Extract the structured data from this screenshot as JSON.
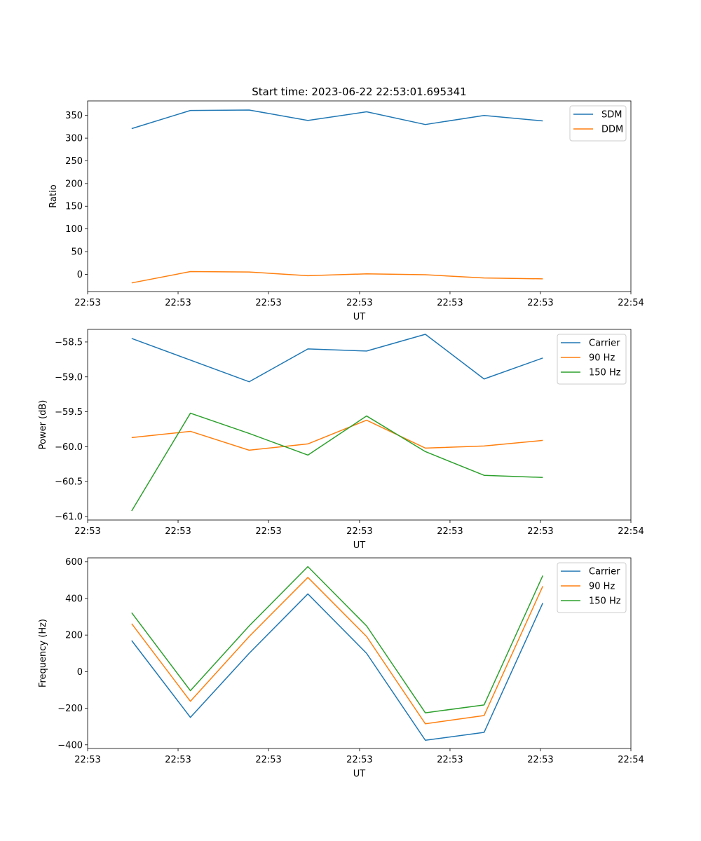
{
  "figure": {
    "title": "Start time: 2023-06-22 22:53:01.695341"
  },
  "chart_data": [
    {
      "type": "line",
      "title": "Start time: 2023-06-22 22:53:01.695341",
      "xlabel": "UT",
      "ylabel": "Ratio",
      "x": [
        0,
        1,
        2,
        3,
        4,
        5,
        6,
        7
      ],
      "xlim": [
        -0.75,
        8.5
      ],
      "x_ticks": [
        -0.75,
        0.79,
        2.33,
        3.88,
        5.42,
        6.96,
        8.5
      ],
      "x_tick_labels": [
        "22:53",
        "22:53",
        "22:53",
        "22:53",
        "22:53",
        "22:53",
        "22:54"
      ],
      "ylim": [
        -38,
        382
      ],
      "y_ticks": [
        0,
        50,
        100,
        150,
        200,
        250,
        300,
        350
      ],
      "y_tick_labels": [
        "0",
        "50",
        "100",
        "150",
        "200",
        "250",
        "300",
        "350"
      ],
      "legend_position": "top-right",
      "series": [
        {
          "name": "SDM",
          "color": "#1f77b4",
          "values": [
            321,
            361,
            362,
            339,
            358,
            330,
            350,
            338
          ]
        },
        {
          "name": "DDM",
          "color": "#ff7f0e",
          "values": [
            -19,
            6,
            5,
            -3,
            1,
            -1,
            -8,
            -10
          ]
        }
      ]
    },
    {
      "type": "line",
      "xlabel": "UT",
      "ylabel": "Power (dB)",
      "x": [
        0,
        1,
        2,
        3,
        4,
        5,
        6,
        7
      ],
      "xlim": [
        -0.75,
        8.5
      ],
      "x_ticks": [
        -0.75,
        0.79,
        2.33,
        3.88,
        5.42,
        6.96,
        8.5
      ],
      "x_tick_labels": [
        "22:53",
        "22:53",
        "22:53",
        "22:53",
        "22:53",
        "22:53",
        "22:54"
      ],
      "ylim": [
        -61.05,
        -58.32
      ],
      "y_ticks": [
        -61.0,
        -60.5,
        -60.0,
        -59.5,
        -59.0,
        -58.5
      ],
      "y_tick_labels": [
        "−61.0",
        "−60.5",
        "−60.0",
        "−59.5",
        "−59.0",
        "−58.5"
      ],
      "legend_position": "top-right",
      "series": [
        {
          "name": "Carrier",
          "color": "#1f77b4",
          "values": [
            -58.45,
            -58.76,
            -59.07,
            -58.6,
            -58.63,
            -58.39,
            -59.03,
            -58.73
          ]
        },
        {
          "name": "90 Hz",
          "color": "#ff7f0e",
          "values": [
            -59.87,
            -59.78,
            -60.05,
            -59.96,
            -59.62,
            -60.02,
            -59.99,
            -59.91
          ]
        },
        {
          "name": "150 Hz",
          "color": "#2ca02c",
          "values": [
            -60.92,
            -59.52,
            -59.81,
            -60.12,
            -59.56,
            -60.07,
            -60.41,
            -60.44
          ]
        }
      ]
    },
    {
      "type": "line",
      "xlabel": "UT",
      "ylabel": "Frequency (Hz)",
      "x": [
        0,
        1,
        2,
        3,
        4,
        5,
        6,
        7
      ],
      "xlim": [
        -0.75,
        8.5
      ],
      "x_ticks": [
        -0.75,
        0.79,
        2.33,
        3.88,
        5.42,
        6.96,
        8.5
      ],
      "x_tick_labels": [
        "22:53",
        "22:53",
        "22:53",
        "22:53",
        "22:53",
        "22:53",
        "22:54"
      ],
      "ylim": [
        -420,
        622
      ],
      "y_ticks": [
        -400,
        -200,
        0,
        200,
        400,
        600
      ],
      "y_tick_labels": [
        "−400",
        "−200",
        "0",
        "200",
        "400",
        "600"
      ],
      "legend_position": "top-right",
      "series": [
        {
          "name": "Carrier",
          "color": "#1f77b4",
          "values": [
            170,
            -250,
            100,
            425,
            100,
            -375,
            -332,
            375
          ]
        },
        {
          "name": "90 Hz",
          "color": "#ff7f0e",
          "values": [
            262,
            -162,
            192,
            515,
            192,
            -285,
            -240,
            467
          ]
        },
        {
          "name": "150 Hz",
          "color": "#2ca02c",
          "values": [
            322,
            -104,
            250,
            574,
            250,
            -225,
            -182,
            525
          ]
        }
      ]
    }
  ]
}
